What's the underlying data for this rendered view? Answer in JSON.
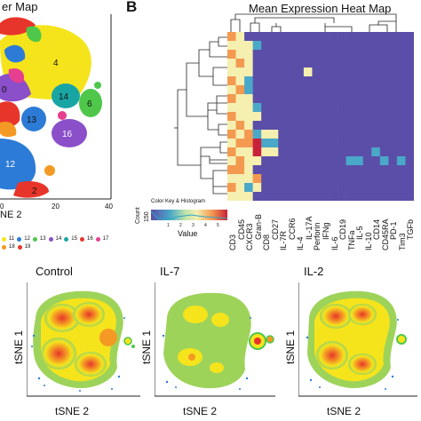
{
  "panelA": {
    "title_fragment": "er Map",
    "x_axis_label": "NE 2",
    "x_ticks": [
      "0",
      "20",
      "40"
    ],
    "cluster_labels": [
      "4",
      "0",
      "14",
      "6",
      "13",
      "16",
      "12",
      "2"
    ],
    "legend_numbers": [
      "11",
      "12",
      "13",
      "14",
      "15",
      "16",
      "17",
      "18",
      "19"
    ],
    "colors": [
      "#f5e41c",
      "#2c7bd6",
      "#4fc74a",
      "#e8352b",
      "#8a4fc9",
      "#f49a24",
      "#1aa5a5",
      "#e63f8f"
    ]
  },
  "panelB": {
    "letter": "B",
    "title": "Mean Expression Heat Map",
    "color_key_title": "Color Key & Histogram",
    "count_label": "Count",
    "count_value": "150",
    "value_label": "Value",
    "key_ticks": [
      "1",
      "2",
      "3",
      "4",
      "5"
    ],
    "markers": [
      "CD3",
      "CD45",
      "CXCR3",
      "Gran-B",
      "CD8",
      "CD27",
      "IL-7R",
      "CCR6",
      "IL-4",
      "IL-17A",
      "Perforin",
      "IFNg",
      "IL-6",
      "CD19",
      "TNFa",
      "IL-5",
      "IL-10",
      "CD14",
      "CD45RA",
      "PD-1",
      "Tim3",
      "TGFb"
    ],
    "colors": {
      "low": "#5b4ea8",
      "mid_low": "#4aa8c8",
      "mid": "#f5efb0",
      "high": "#f39a50",
      "top": "#c8223a"
    }
  },
  "panelC": {
    "plots": [
      {
        "title": "Control",
        "y_label": "tSNE 1",
        "x_label": "tSNE 2"
      },
      {
        "title": "IL-7",
        "y_label": "tSNE 1",
        "x_label": "tSNE 2"
      },
      {
        "title": "IL-2",
        "y_label": "tSNE 1",
        "x_label": "tSNE 2"
      }
    ]
  }
}
